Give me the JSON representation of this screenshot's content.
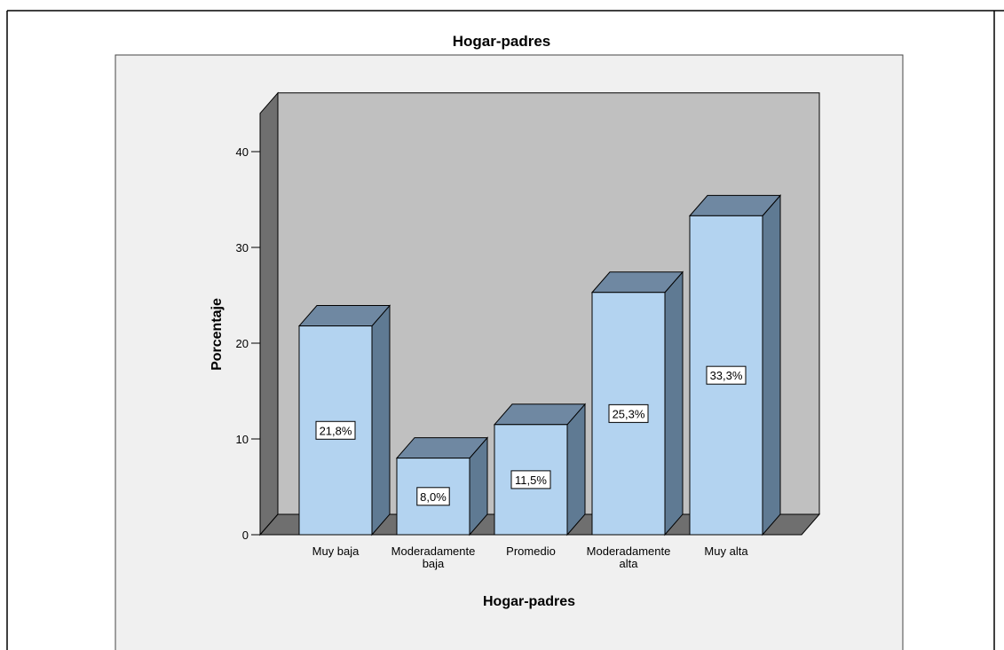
{
  "chart_data": {
    "type": "bar",
    "title": "Hogar-padres",
    "xlabel": "Hogar-padres",
    "ylabel": "Porcentaje",
    "categories": [
      [
        "Muy baja"
      ],
      [
        "Moderadamente",
        "baja"
      ],
      [
        "Promedio"
      ],
      [
        "Moderadamente",
        "alta"
      ],
      [
        "Muy alta"
      ]
    ],
    "values": [
      21.8,
      8.0,
      11.5,
      25.3,
      33.3
    ],
    "data_labels": [
      "21,8%",
      "8,0%",
      "11,5%",
      "25,3%",
      "33,3%"
    ],
    "yticks": [
      "0",
      "10",
      "20",
      "30",
      "40"
    ],
    "ytick_values": [
      0,
      10,
      20,
      30,
      40
    ],
    "ylim": [
      0,
      44
    ],
    "bar_style": "3d",
    "grid": false,
    "legend": "none",
    "colors": {
      "bar_front": "#b3d3f0",
      "bar_side": "#5f7a93",
      "bar_top": "#6f88a2",
      "plot_back": "#c0c0c0",
      "left_wall": "#6f6f6f",
      "floor": "#6f6f6f",
      "chart_background": "#f0f0f0"
    }
  }
}
